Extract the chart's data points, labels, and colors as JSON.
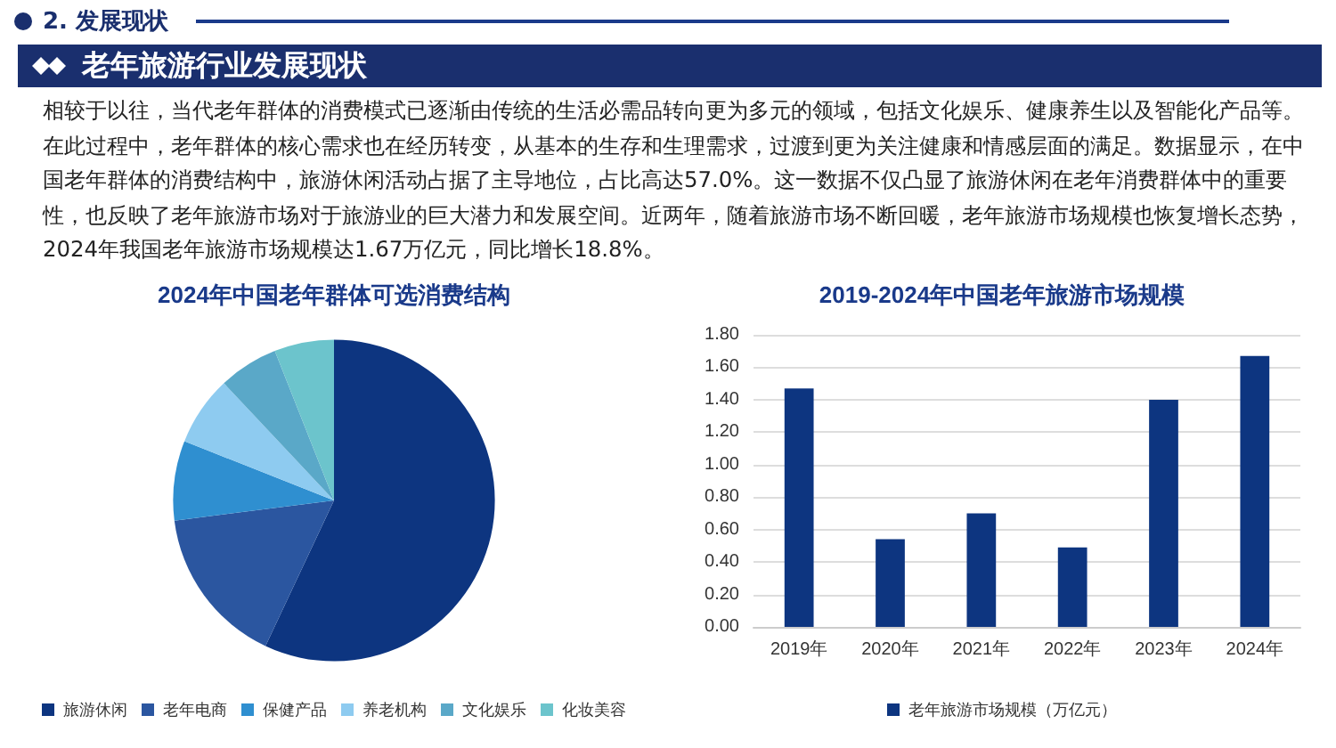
{
  "chart_data": [
    {
      "type": "pie",
      "title": "2024年中国老年群体可选消费结构",
      "annotations": [
        "2. 发展现状",
        "老年旅游行业发展现状",
        "相较于以往，当代老年群体的消费模式已逐渐由传统的生活必需品转向更为多元的领域，包括文化娱乐、健康养生以及智能化产品等。在此过程中，老年群体的核心需求也在经历转变，从基本的生存和生理需求，过渡到更为关注健康和情感层面的满足。数据显示，在中国老年群体的消费结构中，旅游休闲活动占据了主导地位，占比高达57.0%。这一数据不仅凸显了旅游休闲在老年消费群体中的重要性，也反映了老年旅游市场对于旅游业的巨大潜力和发展空间。近两年，随着旅游市场不断回暖，老年旅游市场规模也恢复增长态势，2024年我国老年旅游市场规模达1.67万亿元，同比增长18.8%。"
      ],
      "categories": [
        "旅游休闲",
        "老年电商",
        "保健产品",
        "养老机构",
        "文化娱乐",
        "化妆美容"
      ],
      "values": [
        57,
        16,
        8,
        7,
        6,
        6
      ],
      "colors": [
        "#0d3580",
        "#2b56a0",
        "#2f8fd0",
        "#8ecbf0",
        "#5aa8c8",
        "#6cc4cc"
      ],
      "legend": "bottom"
    },
    {
      "type": "bar",
      "title": "2019-2024年中国老年旅游市场规模",
      "categories": [
        "2019年",
        "2020年",
        "2021年",
        "2022年",
        "2023年",
        "2024年"
      ],
      "series": [
        {
          "name": "老年旅游市场规模（万亿元）",
          "color": "#0d3580",
          "values": [
            1.47,
            0.54,
            0.7,
            0.49,
            1.4,
            1.67
          ]
        }
      ],
      "ylim": [
        0,
        1.8
      ],
      "yticks": [
        {
          "value": 0,
          "label": "0.00"
        },
        {
          "value": 0.2,
          "label": "0.20"
        },
        {
          "value": 0.4,
          "label": "0.40"
        },
        {
          "value": 0.6,
          "label": "0.60"
        },
        {
          "value": 0.8,
          "label": "0.80"
        },
        {
          "value": 1,
          "label": "1.00"
        },
        {
          "value": 1.2,
          "label": "1.20"
        },
        {
          "value": 1.4,
          "label": "1.40"
        },
        {
          "value": 1.6,
          "label": "1.60"
        },
        {
          "value": 1.8,
          "label": "1.80"
        }
      ],
      "grid": "y",
      "legend": "bottom"
    }
  ]
}
